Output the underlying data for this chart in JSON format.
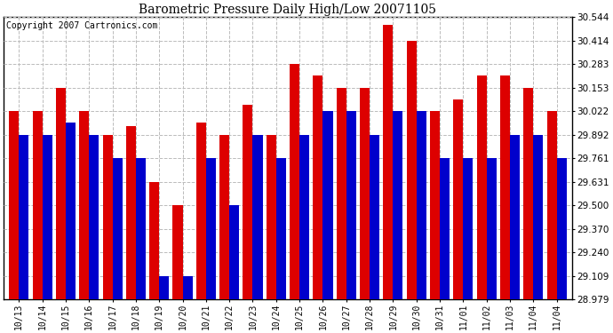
{
  "title": "Barometric Pressure Daily High/Low 20071105",
  "copyright": "Copyright 2007 Cartronics.com",
  "categories": [
    "10/13",
    "10/14",
    "10/15",
    "10/16",
    "10/17",
    "10/18",
    "10/19",
    "10/20",
    "10/21",
    "10/22",
    "10/23",
    "10/24",
    "10/25",
    "10/26",
    "10/27",
    "10/28",
    "10/29",
    "10/30",
    "10/31",
    "11/01",
    "11/02",
    "11/03",
    "11/04",
    "11/04"
  ],
  "high_values": [
    30.022,
    30.022,
    30.153,
    30.022,
    29.892,
    29.94,
    29.631,
    29.5,
    29.96,
    29.892,
    30.06,
    29.892,
    30.283,
    30.22,
    30.153,
    30.153,
    30.5,
    30.414,
    30.022,
    30.09,
    30.22,
    30.22,
    30.153,
    30.022
  ],
  "low_values": [
    29.892,
    29.892,
    29.96,
    29.892,
    29.761,
    29.761,
    29.109,
    29.109,
    29.761,
    29.5,
    29.892,
    29.761,
    29.892,
    30.022,
    30.022,
    29.892,
    30.022,
    30.022,
    29.761,
    29.761,
    29.761,
    29.892,
    29.892,
    29.761
  ],
  "high_color": "#dd0000",
  "low_color": "#0000cc",
  "ylim_min": 28.979,
  "ylim_max": 30.544,
  "yticks": [
    28.979,
    29.109,
    29.24,
    29.37,
    29.5,
    29.631,
    29.761,
    29.892,
    30.022,
    30.153,
    30.283,
    30.414,
    30.544
  ],
  "background_color": "#ffffff",
  "plot_bg_color": "#ffffff",
  "grid_color": "#bbbbbb",
  "title_fontsize": 10,
  "copyright_fontsize": 7
}
